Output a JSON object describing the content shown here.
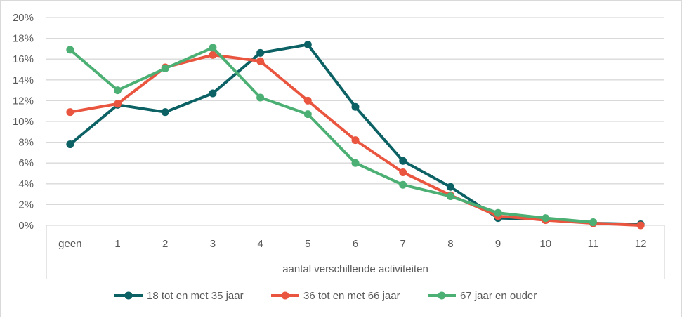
{
  "chart_data": {
    "type": "line",
    "title": "",
    "xlabel": "aantal verschillende activiteiten",
    "ylabel": "",
    "categories": [
      "geen",
      "1",
      "2",
      "3",
      "4",
      "5",
      "6",
      "7",
      "8",
      "9",
      "10",
      "11",
      "12"
    ],
    "ylim": [
      0,
      20
    ],
    "yticks": [
      "0%",
      "2%",
      "4%",
      "6%",
      "8%",
      "10%",
      "12%",
      "14%",
      "16%",
      "18%",
      "20%"
    ],
    "grid": true,
    "legend_position": "bottom",
    "series": [
      {
        "name": "18 tot en met 35 jaar",
        "color": "#0b6164",
        "values": [
          7.8,
          11.6,
          10.9,
          12.7,
          16.6,
          17.4,
          11.4,
          6.2,
          3.7,
          0.7,
          0.6,
          0.2,
          0.1
        ]
      },
      {
        "name": "36 tot en met 66 jaar",
        "color": "#e9553f",
        "values": [
          10.9,
          11.7,
          15.2,
          16.4,
          15.8,
          12.0,
          8.2,
          5.1,
          2.9,
          0.9,
          0.5,
          0.2,
          0.0
        ]
      },
      {
        "name": "67 jaar en ouder",
        "color": "#4caf73",
        "values": [
          16.9,
          13.0,
          15.1,
          17.1,
          12.3,
          10.7,
          6.0,
          3.9,
          2.8,
          1.2,
          0.7,
          0.3,
          null
        ]
      }
    ]
  }
}
